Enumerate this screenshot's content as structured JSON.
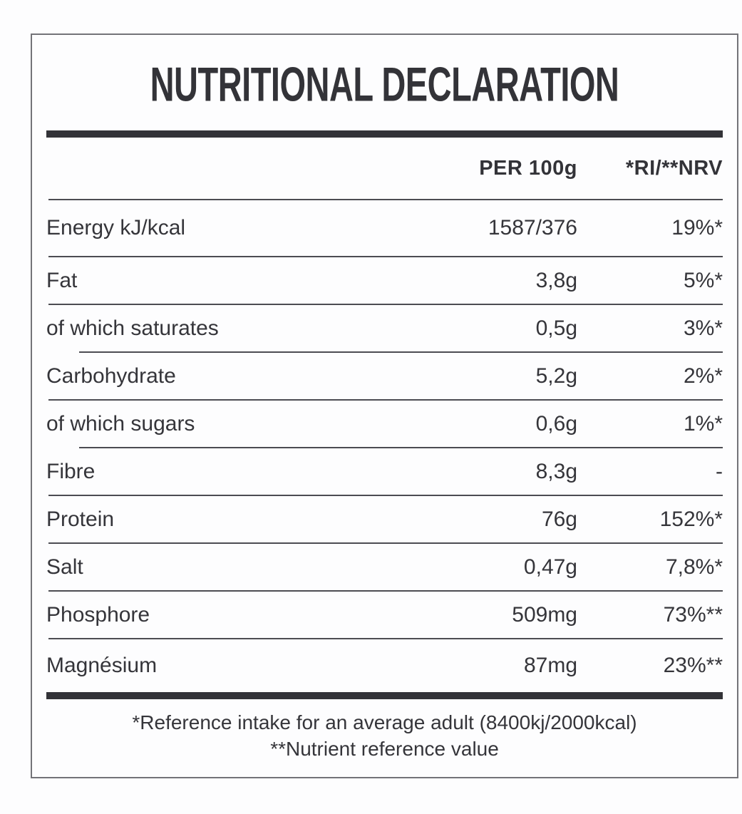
{
  "title": "NUTRITIONAL DECLARATION",
  "table": {
    "col_headers": [
      "PER 100g",
      "*RI/**NRV"
    ],
    "rows": [
      {
        "label": "Energy kJ/kcal",
        "per100g": "1587/376",
        "ri": "19%*",
        "sub": false
      },
      {
        "label": "Fat",
        "per100g": "3,8g",
        "ri": "5%*",
        "sub": false
      },
      {
        "label": "of which saturates",
        "per100g": "0,5g",
        "ri": "3%*",
        "sub": true
      },
      {
        "label": "Carbohydrate",
        "per100g": "5,2g",
        "ri": "2%*",
        "sub": false
      },
      {
        "label": "of which sugars",
        "per100g": "0,6g",
        "ri": "1%*",
        "sub": true
      },
      {
        "label": "Fibre",
        "per100g": "8,3g",
        "ri": "-",
        "sub": false
      },
      {
        "label": "Protein",
        "per100g": "76g",
        "ri": "152%*",
        "sub": false
      },
      {
        "label": "Salt",
        "per100g": "0,47g",
        "ri": "7,8%*",
        "sub": false
      },
      {
        "label": "Phosphore",
        "per100g": "509mg",
        "ri": "73%**",
        "sub": false
      },
      {
        "label": "Magnésium",
        "per100g": "87mg",
        "ri": "23%**",
        "sub": false
      }
    ]
  },
  "footnotes": [
    "*Reference intake for an average adult (8400kj/2000kcal)",
    "**Nutrient reference value"
  ],
  "colors": {
    "text": "#35353a",
    "heavy_rule": "#333338",
    "thin_rule": "#4c4c52",
    "border": "#737378",
    "background": "#fdfdfe"
  }
}
